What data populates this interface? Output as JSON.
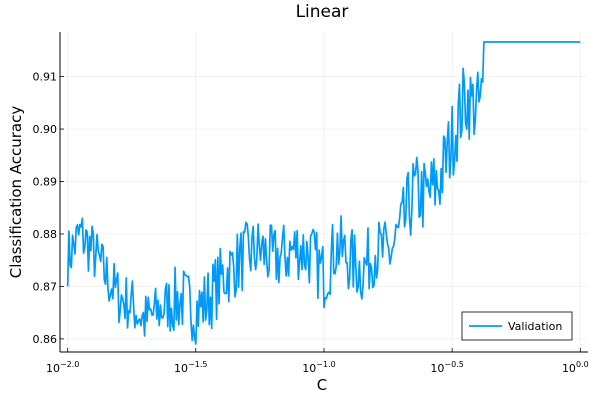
{
  "chart_data": {
    "type": "line",
    "title": "Linear",
    "xlabel": "C",
    "ylabel": "Classification Accuracy",
    "x_scale": "log10",
    "xlim": [
      0.01,
      1.0
    ],
    "ylim": [
      0.8575,
      0.9185
    ],
    "x_ticks": [
      {
        "value": 0.01,
        "base": "10",
        "exp": "−2.0"
      },
      {
        "value": 0.0316,
        "base": "10",
        "exp": "−1.5"
      },
      {
        "value": 0.1,
        "base": "10",
        "exp": "−1.0"
      },
      {
        "value": 0.3162,
        "base": "10",
        "exp": "−0.5"
      },
      {
        "value": 1.0,
        "base": "10",
        "exp": "0.0"
      }
    ],
    "y_ticks": [
      0.86,
      0.87,
      0.88,
      0.89,
      0.9,
      0.91
    ],
    "y_tick_labels": [
      "0.86",
      "0.87",
      "0.88",
      "0.89",
      "0.90",
      "0.91"
    ],
    "grid": true,
    "legend_position": "bottom-right",
    "series": [
      {
        "name": "Validation",
        "color": "#009af9",
        "log10_x": [
          -2.0,
          -1.95,
          -1.9,
          -1.85,
          -1.8,
          -1.75,
          -1.7,
          -1.65,
          -1.6,
          -1.55,
          -1.5,
          -1.45,
          -1.4,
          -1.35,
          -1.3,
          -1.25,
          -1.2,
          -1.15,
          -1.1,
          -1.05,
          -1.0,
          -0.95,
          -0.9,
          -0.85,
          -0.8,
          -0.75,
          -0.7,
          -0.65,
          -0.6,
          -0.55,
          -0.5,
          -0.45,
          -0.4,
          -0.35,
          -0.3,
          -0.25,
          -0.2,
          -0.15,
          -0.1,
          -0.05,
          0.0
        ],
        "y": [
          0.8755,
          0.88,
          0.8765,
          0.872,
          0.868,
          0.8665,
          0.8635,
          0.865,
          0.867,
          0.8675,
          0.8655,
          0.8675,
          0.8715,
          0.874,
          0.876,
          0.877,
          0.875,
          0.876,
          0.8775,
          0.876,
          0.872,
          0.878,
          0.875,
          0.873,
          0.877,
          0.876,
          0.88,
          0.888,
          0.887,
          0.89,
          0.898,
          0.906,
          0.904,
          0.909,
          0.9165,
          0.9165,
          0.9165,
          0.9165,
          0.9165,
          0.9165,
          0.9165
        ]
      }
    ]
  }
}
